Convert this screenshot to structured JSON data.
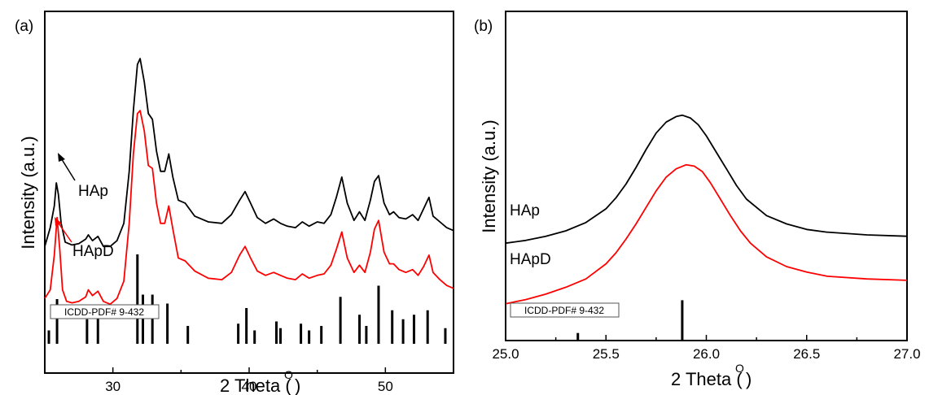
{
  "panel_a_label": "(a)",
  "panel_b_label": "(b)",
  "chart_data": [
    {
      "type": "line",
      "xlabel": "2 Theta (O)",
      "ylabel": "Intensity (a.u.)",
      "xlim": [
        25,
        55
      ],
      "xticks": [
        "30",
        "40",
        "50"
      ],
      "reference_label": "ICDD-PDF# 9-432",
      "series": [
        {
          "name": "HAp",
          "color": "#000000",
          "x": [
            25.0,
            25.4,
            25.7,
            25.85,
            26.0,
            26.2,
            26.5,
            27.0,
            27.5,
            28.0,
            28.2,
            28.5,
            28.9,
            29.3,
            29.8,
            30.3,
            30.8,
            31.2,
            31.5,
            31.8,
            32.0,
            32.3,
            32.6,
            32.9,
            33.2,
            33.5,
            33.8,
            34.1,
            34.4,
            34.8,
            35.3,
            36.0,
            37.0,
            38.0,
            38.7,
            39.3,
            39.7,
            40.1,
            40.6,
            41.2,
            41.8,
            42.3,
            42.8,
            43.4,
            43.9,
            44.4,
            45.0,
            45.5,
            46.0,
            46.4,
            46.8,
            47.2,
            47.7,
            48.1,
            48.5,
            48.9,
            49.2,
            49.5,
            49.9,
            50.3,
            50.6,
            51.0,
            51.5,
            52.0,
            52.4,
            52.8,
            53.2,
            53.5,
            54.0,
            54.5,
            55.0
          ],
          "values": [
            480,
            545,
            620,
            700,
            660,
            560,
            495,
            485,
            490,
            505,
            520,
            500,
            515,
            480,
            480,
            500,
            560,
            740,
            950,
            1110,
            1130,
            1050,
            940,
            920,
            810,
            740,
            740,
            800,
            720,
            640,
            630,
            585,
            565,
            560,
            590,
            640,
            670,
            630,
            580,
            560,
            575,
            560,
            550,
            545,
            565,
            550,
            565,
            560,
            590,
            650,
            720,
            630,
            570,
            600,
            570,
            640,
            705,
            725,
            630,
            590,
            600,
            580,
            575,
            590,
            570,
            610,
            650,
            585,
            565,
            545,
            535
          ]
        },
        {
          "name": "HApD",
          "color": "#ff0000",
          "x": [
            25.0,
            25.4,
            25.7,
            25.9,
            26.1,
            26.3,
            26.6,
            27.0,
            27.5,
            28.0,
            28.2,
            28.5,
            28.9,
            29.3,
            29.8,
            30.3,
            30.8,
            31.2,
            31.5,
            31.8,
            32.0,
            32.3,
            32.6,
            32.9,
            33.2,
            33.5,
            33.8,
            34.1,
            34.4,
            34.8,
            35.3,
            36.0,
            37.0,
            38.0,
            38.7,
            39.3,
            39.7,
            40.1,
            40.6,
            41.2,
            41.8,
            42.3,
            42.8,
            43.4,
            43.9,
            44.4,
            45.0,
            45.5,
            46.0,
            46.4,
            46.8,
            47.2,
            47.7,
            48.1,
            48.5,
            48.9,
            49.2,
            49.5,
            49.9,
            50.3,
            50.6,
            51.0,
            51.5,
            52.0,
            52.4,
            52.8,
            53.2,
            53.5,
            54.0,
            54.5,
            55.0
          ],
          "values": [
            300,
            330,
            450,
            580,
            470,
            330,
            290,
            285,
            290,
            305,
            330,
            310,
            325,
            290,
            280,
            300,
            360,
            560,
            800,
            940,
            950,
            880,
            760,
            750,
            630,
            560,
            560,
            620,
            540,
            440,
            430,
            395,
            370,
            365,
            390,
            450,
            480,
            440,
            395,
            380,
            390,
            380,
            370,
            365,
            385,
            370,
            380,
            385,
            415,
            470,
            530,
            440,
            390,
            415,
            390,
            460,
            540,
            570,
            460,
            420,
            420,
            400,
            390,
            400,
            380,
            410,
            450,
            390,
            365,
            345,
            335
          ]
        }
      ],
      "reference_peaks": {
        "x": [
          25.3,
          25.9,
          28.1,
          28.9,
          31.8,
          32.2,
          32.9,
          34.0,
          35.5,
          39.2,
          39.8,
          40.4,
          42.0,
          42.3,
          43.8,
          44.4,
          45.3,
          46.7,
          48.1,
          48.6,
          49.5,
          50.5,
          51.3,
          52.1,
          53.1,
          54.4
        ],
        "values": [
          30,
          100,
          55,
          70,
          200,
          110,
          110,
          90,
          40,
          45,
          80,
          30,
          50,
          35,
          45,
          30,
          40,
          105,
          65,
          40,
          130,
          75,
          55,
          65,
          75,
          35
        ]
      }
    },
    {
      "type": "line",
      "xlabel": "2 Theta (O)",
      "ylabel": "Intensity (a.u.)",
      "xlim": [
        25.0,
        27.0
      ],
      "xticks": [
        "25.0",
        "25.5",
        "26.0",
        "26.5",
        "27.0"
      ],
      "reference_label": "ICDD-PDF# 9-432",
      "series": [
        {
          "name": "HAp",
          "color": "#000000",
          "x": [
            25.0,
            25.1,
            25.2,
            25.3,
            25.4,
            25.5,
            25.55,
            25.6,
            25.65,
            25.7,
            25.75,
            25.8,
            25.85,
            25.88,
            25.92,
            25.96,
            26.0,
            26.05,
            26.1,
            26.15,
            26.2,
            26.3,
            26.4,
            26.5,
            26.6,
            26.8,
            27.0
          ],
          "values": [
            300,
            310,
            325,
            345,
            375,
            425,
            465,
            515,
            575,
            640,
            700,
            740,
            760,
            765,
            755,
            730,
            690,
            630,
            570,
            510,
            460,
            400,
            370,
            350,
            340,
            330,
            325
          ]
        },
        {
          "name": "HApD",
          "color": "#ff0000",
          "x": [
            25.0,
            25.1,
            25.2,
            25.3,
            25.4,
            25.5,
            25.55,
            25.6,
            25.65,
            25.7,
            25.75,
            25.8,
            25.85,
            25.9,
            25.94,
            25.98,
            26.02,
            26.07,
            26.12,
            26.17,
            26.22,
            26.3,
            26.4,
            26.5,
            26.6,
            26.8,
            27.0
          ],
          "values": [
            80,
            95,
            115,
            140,
            170,
            225,
            265,
            315,
            370,
            430,
            490,
            540,
            570,
            585,
            580,
            560,
            520,
            460,
            400,
            345,
            300,
            250,
            215,
            195,
            180,
            170,
            165
          ]
        }
      ],
      "reference_peaks": {
        "x": [
          25.36,
          25.88
        ],
        "values": [
          15,
          80
        ]
      }
    }
  ],
  "labels": {
    "a_hap": "HAp",
    "a_hapd": "HApD",
    "b_hap": "HAp",
    "b_hapd": "HApD",
    "xlabel_main": "2 Theta (",
    "xlabel_sup": "O",
    "xlabel_end": ")",
    "ylabel": "Intensity (a.u.)"
  }
}
